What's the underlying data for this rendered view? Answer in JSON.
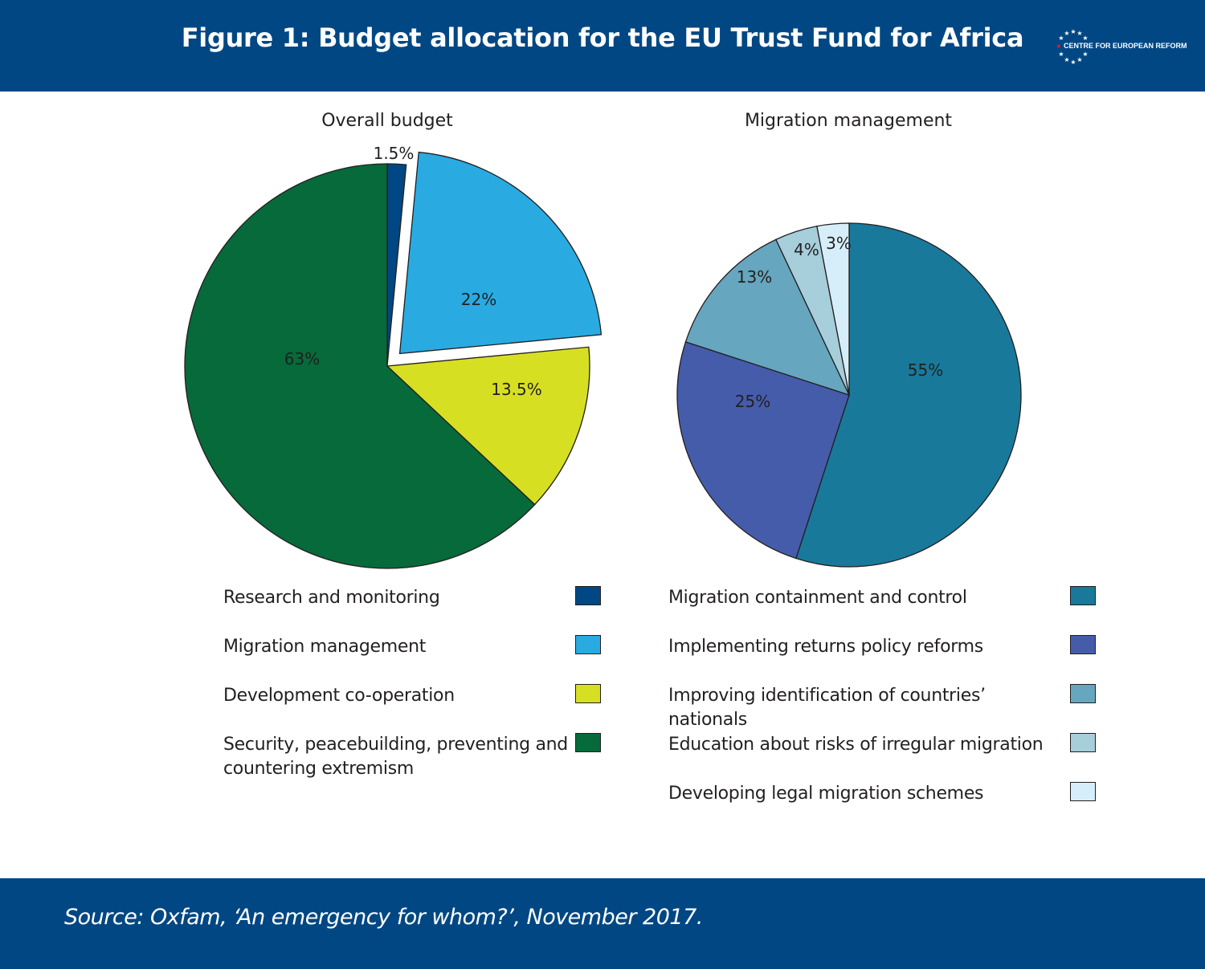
{
  "header": {
    "title": "Figure 1: Budget allocation for the EU Trust Fund for Africa",
    "logo_text": "CENTRE FOR EUROPEAN REFORM",
    "bg_color": "#004783"
  },
  "footer": {
    "source": "Source: Oxfam, ‘An emergency for whom?’, November 2017."
  },
  "chart_data": [
    {
      "type": "pie",
      "title": "Overall budget",
      "legend_position": "bottom",
      "slices": [
        {
          "name": "Research and monitoring",
          "value": 1.5,
          "label": "1.5%",
          "color": "#004783",
          "exploded": false
        },
        {
          "name": "Migration management",
          "value": 22,
          "label": "22%",
          "color": "#29abe2",
          "exploded": true
        },
        {
          "name": "Development co-operation",
          "value": 13.5,
          "label": "13.5%",
          "color": "#d7df23",
          "exploded": false
        },
        {
          "name": "Security, peacebuilding, preventing and countering extremism",
          "value": 63,
          "label": "63%",
          "color": "#066a3a",
          "exploded": false
        }
      ]
    },
    {
      "type": "pie",
      "title": "Migration management",
      "legend_position": "bottom",
      "slices": [
        {
          "name": "Migration containment and control",
          "value": 55,
          "label": "55%",
          "color": "#18799b"
        },
        {
          "name": "Implementing returns policy reforms",
          "value": 25,
          "label": "25%",
          "color": "#455caa"
        },
        {
          "name": "Improving identification of countries’ nationals",
          "value": 13,
          "label": "13%",
          "color": "#66a6bf"
        },
        {
          "name": "Education about risks of irregular migration",
          "value": 4,
          "label": "4%",
          "color": "#a6cedb"
        },
        {
          "name": "Developing legal migration schemes",
          "value": 3,
          "label": "3%",
          "color": "#d6eefa"
        }
      ]
    }
  ]
}
